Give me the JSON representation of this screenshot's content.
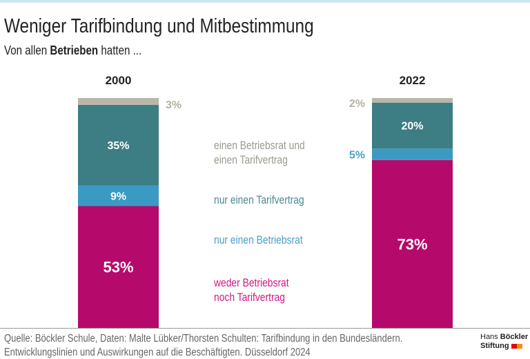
{
  "title": "Weniger Tarifbindung und Mitbestimmung",
  "subtitle": {
    "prefix": "Von allen ",
    "bold": "Betrieben",
    "suffix": " hatten ..."
  },
  "chart_data": {
    "type": "bar",
    "stacked": true,
    "categories": [
      "2000",
      "2022"
    ],
    "series": [
      {
        "name": "weder Betriebsrat noch Tarifvertrag",
        "values": [
          53,
          73
        ],
        "color": "#b50a6b",
        "label_color": "#d0197f"
      },
      {
        "name": "nur einen Betriebsrat",
        "values": [
          9,
          5
        ],
        "color": "#3a9ac4",
        "label_color": "#4aa0c8"
      },
      {
        "name": "nur einen Tarifvertrag",
        "values": [
          35,
          20
        ],
        "color": "#3d7d84",
        "label_color": "#4a8a90"
      },
      {
        "name": "einen Betriebsrat und einen Tarifvertrag",
        "values": [
          3,
          2
        ],
        "color": "#bab7a9",
        "label_color": "#9a998f"
      }
    ],
    "unit": "%",
    "ylim": [
      0,
      100
    ],
    "legend_placement": "center, between bars"
  },
  "legend": [
    {
      "lines": [
        "einen Betriebsrat und",
        "einen Tarifvertrag"
      ],
      "color": "#9a998f"
    },
    {
      "lines": [
        "nur einen Tarifvertrag"
      ],
      "color": "#4a8a90"
    },
    {
      "lines": [
        "nur einen Betriebsrat"
      ],
      "color": "#4aa0c8"
    },
    {
      "lines": [
        "weder Betriebsrat",
        "noch Tarifvertrag"
      ],
      "color": "#d0197f"
    }
  ],
  "footer": {
    "line1": "Quelle: Böckler Schule, Daten: Malte Lübker/Thorsten Schulten: Tarifbindung in den Bundesländern.",
    "line2": "Entwicklungslinien und Auswirkungen auf die Beschäftigten. Düsseldorf 2024"
  },
  "logo": {
    "line1_light": "Hans ",
    "line1_bold": "Böckler",
    "line2": "Stiftung",
    "colors": [
      "#e30613",
      "#f39200"
    ]
  }
}
